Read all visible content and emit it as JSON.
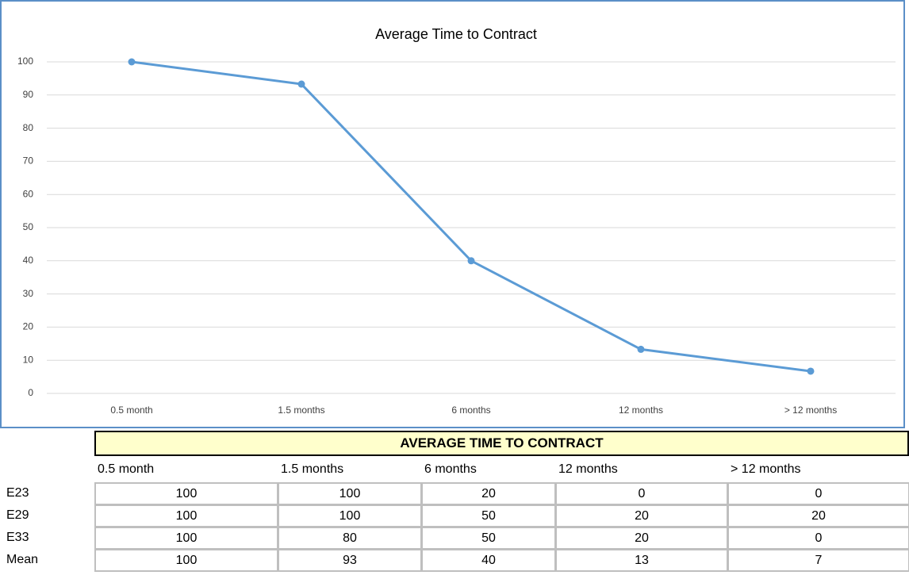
{
  "chart_data": {
    "type": "line",
    "title": "Average Time to Contract",
    "categories": [
      "0.5 month",
      "1.5 months",
      "6 months",
      "12 months",
      "> 12 months"
    ],
    "series": [
      {
        "name": "Mean",
        "color": "#5b9bd5",
        "values": [
          100,
          93.3,
          40,
          13.3,
          6.7
        ]
      }
    ],
    "ylim": [
      0,
      100
    ],
    "yticks": [
      0,
      10,
      20,
      30,
      40,
      50,
      60,
      70,
      80,
      90,
      100
    ],
    "grid": true,
    "legend": false
  },
  "table": {
    "title": "AVERAGE TIME TO CONTRACT",
    "columns": [
      "0.5 month",
      "1.5 months",
      "6 months",
      "12 months",
      "> 12 months"
    ],
    "rows": [
      {
        "label": "E23",
        "values": [
          100,
          100,
          20,
          0,
          0
        ]
      },
      {
        "label": "E29",
        "values": [
          100,
          100,
          50,
          20,
          20
        ]
      },
      {
        "label": "E33",
        "values": [
          100,
          80,
          50,
          20,
          0
        ]
      },
      {
        "label": "Mean",
        "values": [
          100,
          93,
          40,
          13,
          7
        ]
      }
    ]
  }
}
